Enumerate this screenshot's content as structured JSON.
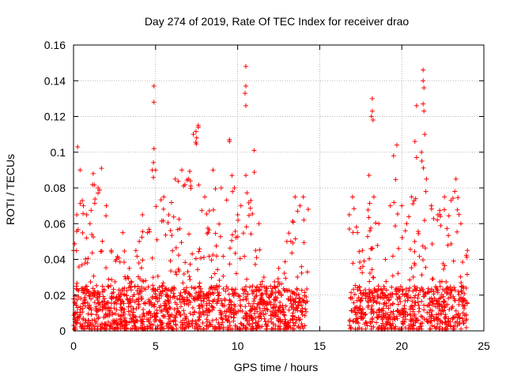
{
  "chart_data": {
    "type": "scatter",
    "title": "Day 274 of 2019, Rate Of TEC Index for receiver drao",
    "xlabel": "GPS time / hours",
    "ylabel": "ROTI / TECUs",
    "xlim": [
      0,
      25
    ],
    "ylim": [
      0,
      0.16
    ],
    "x_ticks": [
      "0",
      "5",
      "10",
      "15",
      "20",
      "25"
    ],
    "y_ticks": [
      "0",
      "0.02",
      "0.04",
      "0.06",
      "0.08",
      "0.1",
      "0.12",
      "0.14",
      "0.16"
    ],
    "grid": true,
    "marker": "plus",
    "series_color": "#ff0000",
    "data_gap_hours": [
      14.3,
      16.8
    ],
    "data_range_hours": [
      0,
      24
    ],
    "upper_envelope": [
      [
        0.0,
        0.045
      ],
      [
        0.2,
        0.065
      ],
      [
        0.25,
        0.103
      ],
      [
        0.4,
        0.09
      ],
      [
        0.6,
        0.07
      ],
      [
        0.8,
        0.065
      ],
      [
        1.0,
        0.06
      ],
      [
        1.2,
        0.088
      ],
      [
        1.5,
        0.08
      ],
      [
        1.7,
        0.091
      ],
      [
        2.0,
        0.07
      ],
      [
        2.3,
        0.045
      ],
      [
        2.6,
        0.04
      ],
      [
        3.0,
        0.055
      ],
      [
        3.4,
        0.035
      ],
      [
        3.8,
        0.045
      ],
      [
        4.2,
        0.065
      ],
      [
        4.5,
        0.055
      ],
      [
        4.8,
        0.09
      ],
      [
        4.9,
        0.102
      ],
      [
        5.0,
        0.09
      ],
      [
        5.5,
        0.075
      ],
      [
        5.8,
        0.065
      ],
      [
        6.2,
        0.085
      ],
      [
        6.6,
        0.09
      ],
      [
        7.0,
        0.085
      ],
      [
        7.3,
        0.11
      ],
      [
        7.6,
        0.115
      ],
      [
        8.0,
        0.075
      ],
      [
        8.5,
        0.09
      ],
      [
        9.0,
        0.08
      ],
      [
        9.5,
        0.107
      ],
      [
        9.8,
        0.08
      ],
      [
        10.0,
        0.065
      ],
      [
        10.2,
        0.07
      ],
      [
        10.5,
        0.087
      ],
      [
        10.8,
        0.073
      ],
      [
        11.0,
        0.101
      ],
      [
        11.3,
        0.06
      ],
      [
        11.6,
        0.03
      ],
      [
        12.0,
        0.025
      ],
      [
        12.5,
        0.035
      ],
      [
        13.0,
        0.05
      ],
      [
        13.5,
        0.075
      ],
      [
        13.8,
        0.07
      ],
      [
        14.0,
        0.075
      ],
      [
        14.3,
        0.068
      ],
      [
        16.8,
        0.065
      ],
      [
        17.0,
        0.075
      ],
      [
        17.3,
        0.055
      ],
      [
        17.6,
        0.045
      ],
      [
        18.0,
        0.087
      ],
      [
        18.3,
        0.075
      ],
      [
        18.6,
        0.06
      ],
      [
        19.0,
        0.04
      ],
      [
        19.3,
        0.07
      ],
      [
        19.5,
        0.098
      ],
      [
        19.7,
        0.104
      ],
      [
        20.0,
        0.07
      ],
      [
        20.3,
        0.06
      ],
      [
        20.6,
        0.075
      ],
      [
        20.9,
        0.097
      ],
      [
        21.2,
        0.1
      ],
      [
        21.5,
        0.085
      ],
      [
        21.8,
        0.07
      ],
      [
        22.2,
        0.065
      ],
      [
        22.6,
        0.075
      ],
      [
        23.0,
        0.073
      ],
      [
        23.3,
        0.085
      ],
      [
        23.6,
        0.06
      ],
      [
        24.0,
        0.045
      ]
    ],
    "outliers": [
      [
        4.9,
        0.137
      ],
      [
        4.9,
        0.128
      ],
      [
        10.5,
        0.148
      ],
      [
        10.5,
        0.137
      ],
      [
        10.5,
        0.126
      ],
      [
        10.45,
        0.133
      ],
      [
        18.2,
        0.13
      ],
      [
        18.2,
        0.123
      ],
      [
        18.15,
        0.12
      ],
      [
        18.25,
        0.118
      ],
      [
        20.9,
        0.126
      ],
      [
        21.3,
        0.146
      ],
      [
        21.3,
        0.14
      ],
      [
        21.35,
        0.136
      ],
      [
        21.3,
        0.127
      ],
      [
        21.35,
        0.123
      ],
      [
        21.4,
        0.11
      ],
      [
        20.8,
        0.106
      ],
      [
        7.6,
        0.114
      ],
      [
        7.5,
        0.108
      ],
      [
        9.5,
        0.106
      ]
    ]
  }
}
